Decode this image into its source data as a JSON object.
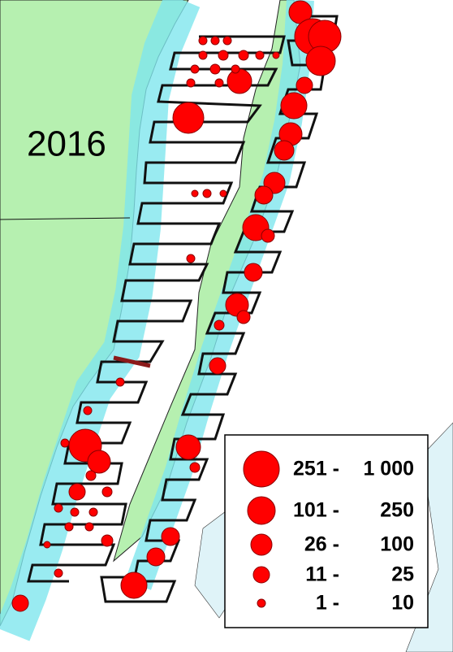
{
  "map": {
    "year_label": "2016",
    "legend": [
      {
        "from": "251 -",
        "to": "1 000"
      },
      {
        "from": "101 -",
        "to": "250"
      },
      {
        "from": "26 -",
        "to": "100"
      },
      {
        "from": "11 -",
        "to": "25"
      },
      {
        "from": "1 -",
        "to": "10"
      }
    ]
  }
}
